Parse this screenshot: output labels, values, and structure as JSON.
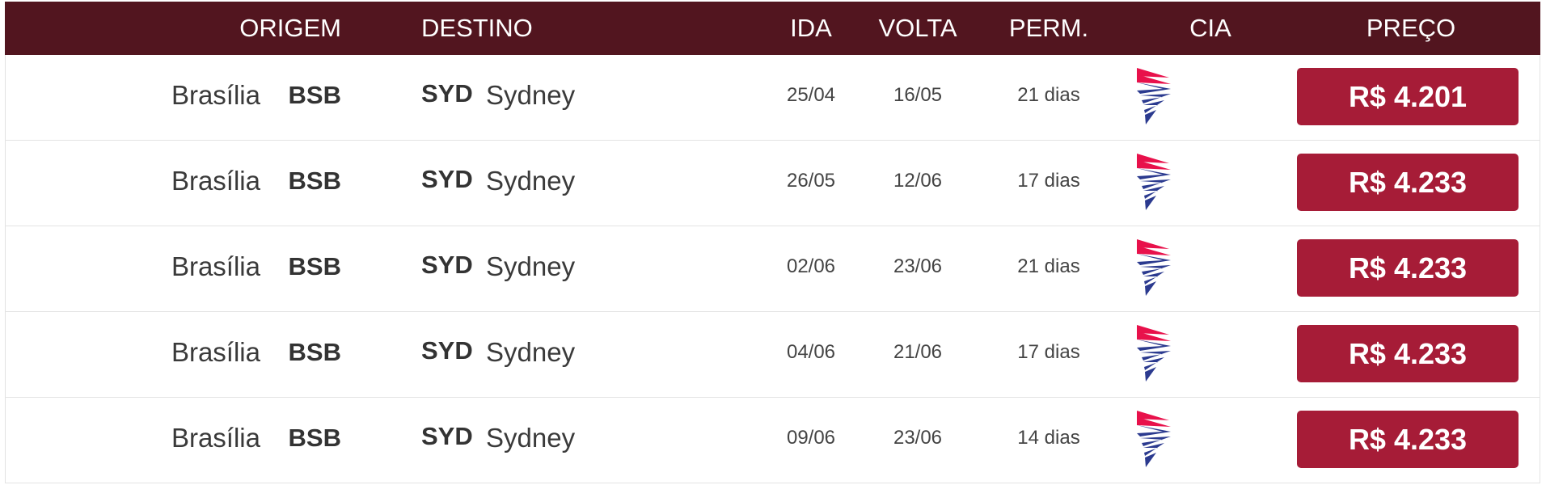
{
  "header": {
    "origem": "ORIGEM",
    "destino": "DESTINO",
    "ida": "IDA",
    "volta": "VOLTA",
    "perm": "PERM.",
    "cia": "CIA",
    "preco": "PREÇO"
  },
  "rows": [
    {
      "origin_city": "Brasília",
      "origin_code": "BSB",
      "dest_code": "SYD",
      "dest_city": "Sydney",
      "ida": "25/04",
      "volta": "16/05",
      "perm": "21 dias",
      "price": "R$ 4.201"
    },
    {
      "origin_city": "Brasília",
      "origin_code": "BSB",
      "dest_code": "SYD",
      "dest_city": "Sydney",
      "ida": "26/05",
      "volta": "12/06",
      "perm": "17 dias",
      "price": "R$ 4.233"
    },
    {
      "origin_city": "Brasília",
      "origin_code": "BSB",
      "dest_code": "SYD",
      "dest_city": "Sydney",
      "ida": "02/06",
      "volta": "23/06",
      "perm": "21 dias",
      "price": "R$ 4.233"
    },
    {
      "origin_city": "Brasília",
      "origin_code": "BSB",
      "dest_code": "SYD",
      "dest_city": "Sydney",
      "ida": "04/06",
      "volta": "21/06",
      "perm": "17 dias",
      "price": "R$ 4.233"
    },
    {
      "origin_city": "Brasília",
      "origin_code": "BSB",
      "dest_code": "SYD",
      "dest_city": "Sydney",
      "ida": "09/06",
      "volta": "23/06",
      "perm": "14 dias",
      "price": "R$ 4.233"
    }
  ]
}
